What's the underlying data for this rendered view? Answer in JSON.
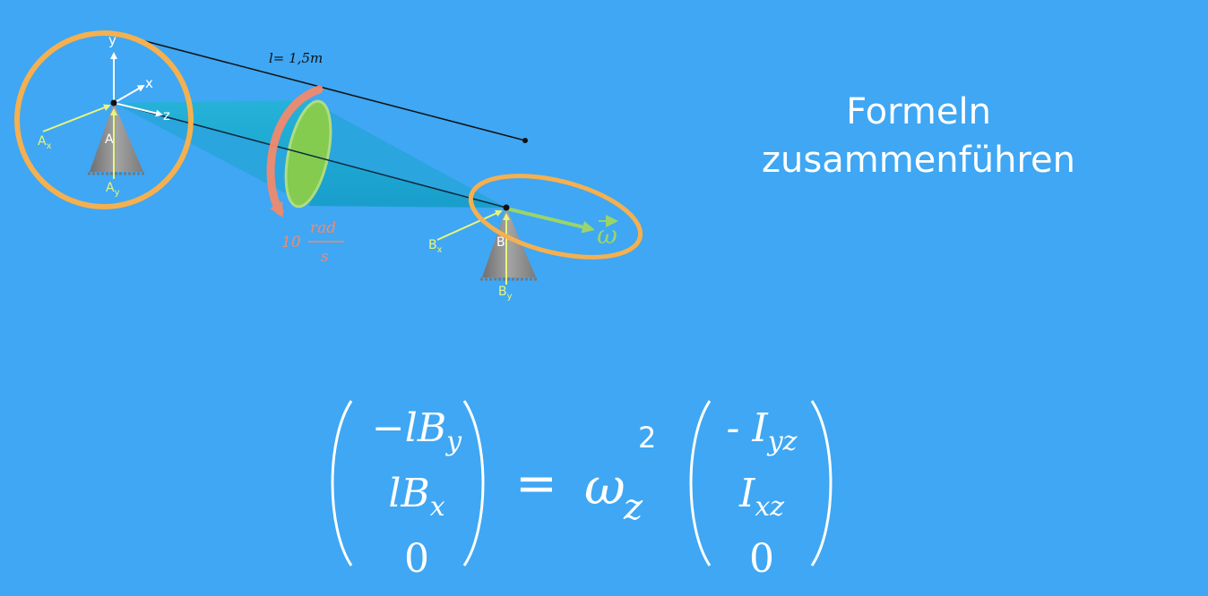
{
  "heading": {
    "line1": "Formeln",
    "line2": "zusammenführen"
  },
  "diagram": {
    "axis_y": "y",
    "axis_x": "x",
    "axis_z": "z",
    "point_a": "A",
    "point_b": "B",
    "force_ax": "A",
    "force_ax_sub": "x",
    "force_ay": "A",
    "force_ay_sub": "y",
    "force_bx": "B",
    "force_bx_sub": "x",
    "force_by": "B",
    "force_by_sub": "y",
    "length_label": "l= 1,5m",
    "speed_value": "10",
    "speed_num": "rad",
    "speed_den": "s",
    "omega_label": "ω",
    "colors": {
      "background": "#3fa7f4",
      "highlight_ring": "#f5b04f",
      "cone": "#1fb6d8",
      "disc": "#8ccf45",
      "rotation_arrow": "#f28a6e",
      "omega": "#9bd46a",
      "force_arrow": "#e9f57a",
      "support": "#8a8a8a"
    }
  },
  "equation": {
    "left": {
      "row1_pre": "−l",
      "row1_var": "B",
      "row1_sub": "y",
      "row2_pre": "l",
      "row2_var": "B",
      "row2_sub": "x",
      "row3": "0"
    },
    "equals": "=",
    "omega": "ω",
    "omega_sub": "z",
    "omega_sup": "2",
    "right": {
      "row1_pre": "- ",
      "row1_var": "I",
      "row1_sub": "yz",
      "row2_var": "I",
      "row2_sub": "xz",
      "row3": "0"
    }
  }
}
